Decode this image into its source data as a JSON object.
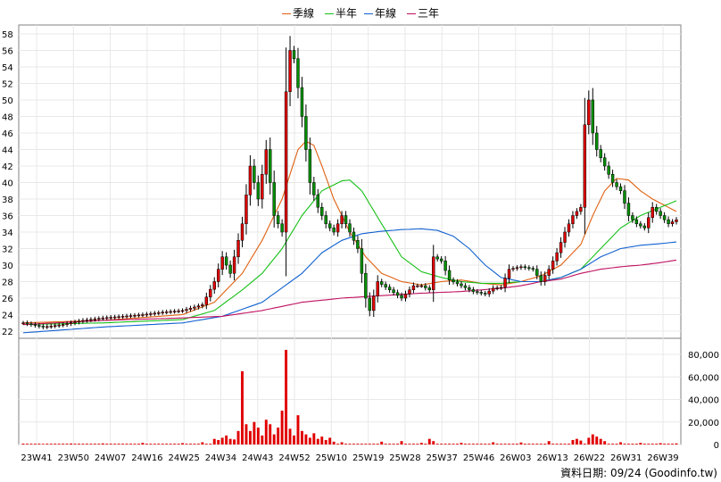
{
  "chart_data": {
    "type": "candlestick",
    "legend": [
      {
        "name": "季線",
        "color": "#e06010"
      },
      {
        "name": "半年",
        "color": "#18c018"
      },
      {
        "name": "年線",
        "color": "#1060d0"
      },
      {
        "name": "三年",
        "color": "#c01060"
      }
    ],
    "colors": {
      "up": "#e00000",
      "down": "#009000",
      "volume": "#e00000"
    },
    "price_axis": {
      "min": 22,
      "max": 58,
      "step": 2,
      "ticks": [
        "22",
        "24",
        "26",
        "28",
        "30",
        "32",
        "34",
        "36",
        "38",
        "40",
        "42",
        "44",
        "46",
        "48",
        "50",
        "52",
        "54",
        "56",
        "58"
      ]
    },
    "volume_axis": {
      "min": 0,
      "max": 80000,
      "ticks": [
        "0",
        "20,000",
        "40,000",
        "60,000",
        "80,000"
      ]
    },
    "x_ticks": [
      "23W41",
      "23W50",
      "24W07",
      "24W16",
      "24W25",
      "24W34",
      "24W43",
      "24W52",
      "25W10",
      "25W19",
      "25W28",
      "25W37",
      "25W46",
      "26W03",
      "26W13",
      "26W22",
      "26W31",
      "26W39"
    ],
    "price_anchors": [
      [
        0,
        23.0
      ],
      [
        5,
        22.5
      ],
      [
        10,
        22.8
      ],
      [
        15,
        23.3
      ],
      [
        20,
        23.6
      ],
      [
        25,
        23.8
      ],
      [
        30,
        24.0
      ],
      [
        35,
        24.3
      ],
      [
        40,
        24.5
      ],
      [
        45,
        25.2
      ],
      [
        48,
        28
      ],
      [
        50,
        31
      ],
      [
        52,
        29
      ],
      [
        55,
        35
      ],
      [
        57,
        42
      ],
      [
        59,
        38
      ],
      [
        61,
        44
      ],
      [
        63,
        36
      ],
      [
        65,
        34
      ],
      [
        66,
        51
      ],
      [
        67,
        56
      ],
      [
        68,
        55
      ],
      [
        70,
        48
      ],
      [
        72,
        40
      ],
      [
        74,
        37
      ],
      [
        76,
        35
      ],
      [
        78,
        34
      ],
      [
        80,
        36
      ],
      [
        82,
        34
      ],
      [
        84,
        32
      ],
      [
        86,
        26
      ],
      [
        87,
        24.5
      ],
      [
        89,
        28
      ],
      [
        92,
        27
      ],
      [
        95,
        26
      ],
      [
        98,
        27.5
      ],
      [
        100,
        27.5
      ],
      [
        102,
        27.0
      ],
      [
        103,
        31
      ],
      [
        105,
        30.5
      ],
      [
        107,
        28.2
      ],
      [
        110,
        27.5
      ],
      [
        113,
        26.8
      ],
      [
        116,
        26.5
      ],
      [
        118,
        27.2
      ],
      [
        120,
        27.3
      ],
      [
        122,
        29.5
      ],
      [
        125,
        29.8
      ],
      [
        128,
        29.5
      ],
      [
        130,
        28.0
      ],
      [
        132,
        29.5
      ],
      [
        134,
        31.5
      ],
      [
        136,
        34
      ],
      [
        138,
        36
      ],
      [
        140,
        37
      ],
      [
        141,
        47
      ],
      [
        142,
        50
      ],
      [
        143,
        46
      ],
      [
        144,
        44
      ],
      [
        146,
        42
      ],
      [
        148,
        40
      ],
      [
        150,
        39
      ],
      [
        152,
        36
      ],
      [
        154,
        35
      ],
      [
        156,
        34.5
      ],
      [
        158,
        37
      ],
      [
        160,
        36
      ],
      [
        162,
        35
      ],
      [
        164,
        35.5
      ]
    ],
    "ma_anchors": {
      "季線": [
        [
          0,
          23.0
        ],
        [
          20,
          23.3
        ],
        [
          40,
          24.0
        ],
        [
          48,
          25.5
        ],
        [
          55,
          29
        ],
        [
          60,
          33
        ],
        [
          65,
          38
        ],
        [
          69,
          44
        ],
        [
          71,
          45
        ],
        [
          73,
          44.5
        ],
        [
          75,
          42
        ],
        [
          78,
          38
        ],
        [
          82,
          34
        ],
        [
          86,
          31
        ],
        [
          90,
          29
        ],
        [
          95,
          28
        ],
        [
          100,
          27.6
        ],
        [
          105,
          28.0
        ],
        [
          110,
          28.2
        ],
        [
          115,
          27.8
        ],
        [
          120,
          27.6
        ],
        [
          125,
          28.0
        ],
        [
          130,
          28.7
        ],
        [
          135,
          30.0
        ],
        [
          140,
          32.5
        ],
        [
          143,
          36
        ],
        [
          146,
          39
        ],
        [
          149,
          40.5
        ],
        [
          152,
          40.3
        ],
        [
          155,
          39
        ],
        [
          158,
          38
        ],
        [
          160,
          37.5
        ],
        [
          162,
          37
        ],
        [
          164,
          36.5
        ]
      ],
      "半年": [
        [
          0,
          22.8
        ],
        [
          20,
          23.0
        ],
        [
          40,
          23.4
        ],
        [
          48,
          24.5
        ],
        [
          55,
          27
        ],
        [
          60,
          29
        ],
        [
          65,
          32
        ],
        [
          70,
          36
        ],
        [
          75,
          39
        ],
        [
          80,
          40.2
        ],
        [
          82,
          40.3
        ],
        [
          85,
          39
        ],
        [
          90,
          35
        ],
        [
          95,
          31
        ],
        [
          100,
          29.2
        ],
        [
          105,
          28.5
        ],
        [
          110,
          28.0
        ],
        [
          115,
          27.8
        ],
        [
          120,
          27.8
        ],
        [
          125,
          28.0
        ],
        [
          130,
          28.0
        ],
        [
          135,
          28.5
        ],
        [
          140,
          29.5
        ],
        [
          145,
          32
        ],
        [
          150,
          34.5
        ],
        [
          155,
          36
        ],
        [
          160,
          37
        ],
        [
          164,
          37.8
        ]
      ],
      "年線": [
        [
          0,
          21.8
        ],
        [
          20,
          22.5
        ],
        [
          40,
          23.0
        ],
        [
          50,
          23.8
        ],
        [
          60,
          25.5
        ],
        [
          70,
          29
        ],
        [
          75,
          31.5
        ],
        [
          80,
          33
        ],
        [
          85,
          33.8
        ],
        [
          90,
          34.1
        ],
        [
          95,
          34.3
        ],
        [
          100,
          34.4
        ],
        [
          104,
          34.2
        ],
        [
          108,
          33.5
        ],
        [
          112,
          32.0
        ],
        [
          116,
          30.0
        ],
        [
          120,
          28.5
        ],
        [
          125,
          28.0
        ],
        [
          130,
          28.0
        ],
        [
          135,
          28.5
        ],
        [
          140,
          29.5
        ],
        [
          145,
          31
        ],
        [
          150,
          32
        ],
        [
          155,
          32.4
        ],
        [
          160,
          32.6
        ],
        [
          164,
          32.8
        ]
      ],
      "三年": [
        [
          0,
          22.8
        ],
        [
          20,
          23.3
        ],
        [
          40,
          23.6
        ],
        [
          50,
          23.8
        ],
        [
          60,
          24.5
        ],
        [
          70,
          25.5
        ],
        [
          80,
          26.0
        ],
        [
          90,
          26.3
        ],
        [
          100,
          26.6
        ],
        [
          110,
          26.8
        ],
        [
          120,
          27.2
        ],
        [
          125,
          27.5
        ],
        [
          130,
          28.0
        ],
        [
          135,
          28.3
        ],
        [
          140,
          29.0
        ],
        [
          145,
          29.5
        ],
        [
          150,
          29.8
        ],
        [
          155,
          30.0
        ],
        [
          160,
          30.3
        ],
        [
          164,
          30.6
        ]
      ]
    },
    "volume_spikes": [
      [
        0,
        800
      ],
      [
        5,
        600
      ],
      [
        12,
        900
      ],
      [
        20,
        1000
      ],
      [
        30,
        1500
      ],
      [
        40,
        1200
      ],
      [
        45,
        2000
      ],
      [
        48,
        5000
      ],
      [
        49,
        4000
      ],
      [
        50,
        6000
      ],
      [
        51,
        8000
      ],
      [
        52,
        5000
      ],
      [
        53,
        4500
      ],
      [
        54,
        12000
      ],
      [
        55,
        65000
      ],
      [
        56,
        18000
      ],
      [
        57,
        12000
      ],
      [
        58,
        20000
      ],
      [
        59,
        15000
      ],
      [
        60,
        8000
      ],
      [
        61,
        22000
      ],
      [
        62,
        18000
      ],
      [
        63,
        9000
      ],
      [
        64,
        15000
      ],
      [
        65,
        30000
      ],
      [
        66,
        95000
      ],
      [
        67,
        14000
      ],
      [
        68,
        8000
      ],
      [
        69,
        26000
      ],
      [
        70,
        12000
      ],
      [
        71,
        9000
      ],
      [
        72,
        6000
      ],
      [
        73,
        10000
      ],
      [
        74,
        5000
      ],
      [
        75,
        7000
      ],
      [
        76,
        4000
      ],
      [
        77,
        6000
      ],
      [
        78,
        2500
      ],
      [
        80,
        2000
      ],
      [
        90,
        2500
      ],
      [
        95,
        3000
      ],
      [
        100,
        1500
      ],
      [
        102,
        5000
      ],
      [
        103,
        3000
      ],
      [
        110,
        1500
      ],
      [
        118,
        2000
      ],
      [
        125,
        1800
      ],
      [
        132,
        3000
      ],
      [
        138,
        4000
      ],
      [
        139,
        5000
      ],
      [
        140,
        3500
      ],
      [
        142,
        6000
      ],
      [
        143,
        9000
      ],
      [
        144,
        7000
      ],
      [
        145,
        5000
      ],
      [
        146,
        3000
      ],
      [
        150,
        2000
      ],
      [
        155,
        1500
      ],
      [
        160,
        1200
      ],
      [
        164,
        1000
      ]
    ],
    "footer": "資料日期: 09/24 (Goodinfo.tw)"
  }
}
